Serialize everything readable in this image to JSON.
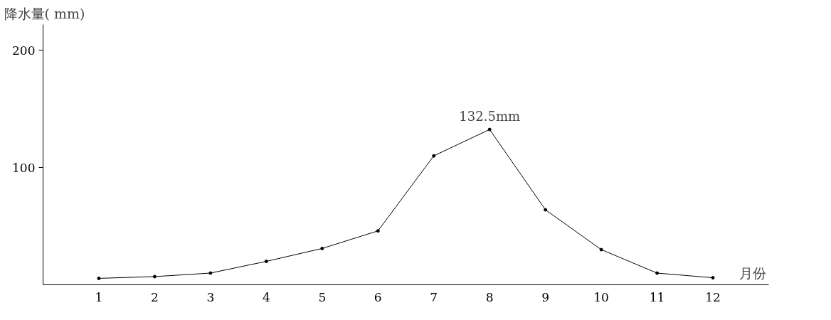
{
  "chart_data": {
    "type": "line",
    "xlabel": "月份",
    "ylabel": "降水量( mm)",
    "x": [
      1,
      2,
      3,
      4,
      5,
      6,
      7,
      8,
      9,
      10,
      11,
      12
    ],
    "series": [
      {
        "color": "#000000",
        "values": [
          5.5,
          7,
          10,
          20,
          31,
          46,
          110,
          132.5,
          64,
          30,
          10,
          6
        ]
      }
    ],
    "xlim": [
      0,
      13
    ],
    "xticks": [
      1,
      2,
      3,
      4,
      5,
      6,
      7,
      8,
      9,
      10,
      11,
      12
    ],
    "ylim": [
      0,
      222
    ],
    "yticks": [
      100,
      200
    ],
    "annotations": [
      {
        "text": "132.5mm",
        "x": 8,
        "y": 132.5
      }
    ],
    "marker": "circle",
    "line_style": "solid",
    "grid": false
  }
}
